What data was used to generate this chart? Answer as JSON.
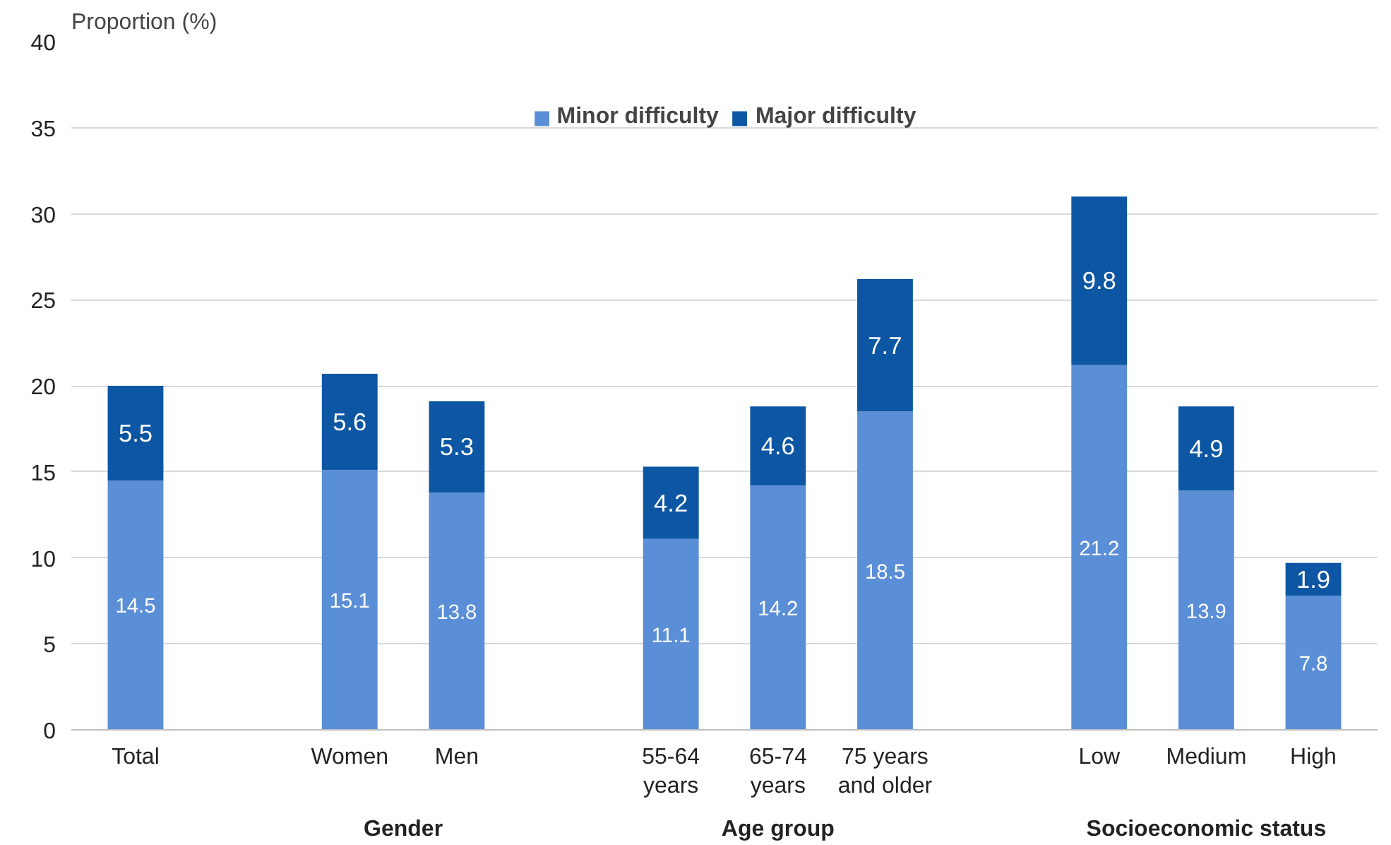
{
  "chart_data": {
    "type": "bar",
    "stacked": true,
    "ylabel": "Proportion (%)",
    "categories": [
      "Total",
      null,
      "Women",
      "Men",
      null,
      "55-64\nyears",
      "65-74\nyears",
      "75 years\nand older",
      null,
      "Low",
      "Medium",
      "High"
    ],
    "series": [
      {
        "name": "Minor difficulty",
        "color": "#5a8ed6",
        "values": [
          14.5,
          null,
          15.1,
          13.8,
          null,
          11.1,
          14.2,
          18.5,
          null,
          21.2,
          13.9,
          7.8
        ]
      },
      {
        "name": "Major difficulty",
        "color": "#0c56a3",
        "values": [
          5.5,
          null,
          5.6,
          5.3,
          null,
          4.2,
          4.6,
          7.7,
          null,
          9.8,
          4.9,
          1.9
        ]
      }
    ],
    "data_labels": true,
    "ylim": [
      0,
      40
    ],
    "yticks": [
      0,
      5,
      10,
      15,
      20,
      25,
      30,
      35,
      40
    ],
    "grid": "y",
    "legend": "top",
    "annotations": [
      "Gender",
      "Age group",
      "Socioeconomic status"
    ]
  }
}
